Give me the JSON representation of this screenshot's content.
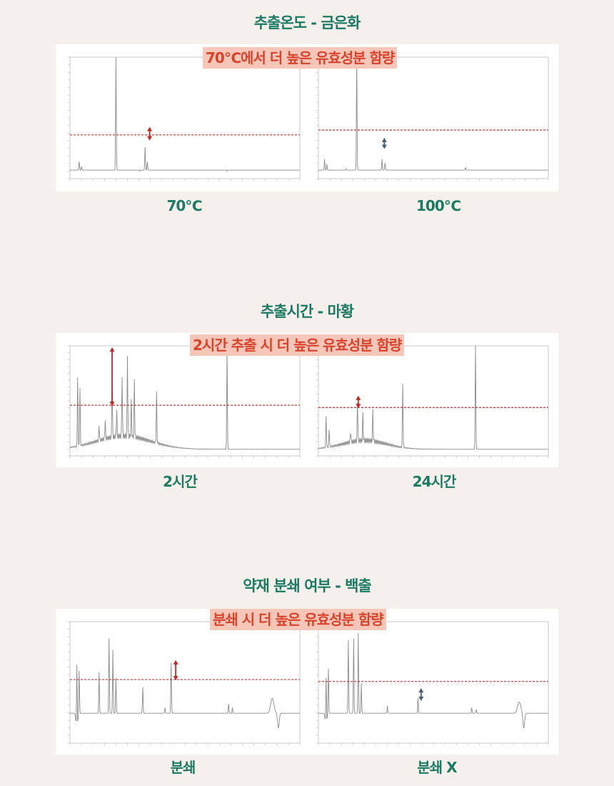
{
  "sections": [
    {
      "title": "추출온도 - 금은화",
      "banner": "70℃에서 더 높은 유효성분 함량",
      "captions": [
        "70℃",
        "100℃"
      ]
    },
    {
      "title": "추출시간 - 마황",
      "banner": "2시간 추출 시 더 높은 유효성분 함량",
      "captions": [
        "2시간",
        "24시간"
      ]
    },
    {
      "title": "약재 분쇄 여부 - 백출",
      "banner": "분쇄 시 더 높은 유효성분 함량",
      "captions": [
        "분쇄",
        "분쇄 X"
      ]
    }
  ],
  "colors": {
    "title": "#1a7a62",
    "banner_bg": "#f6c7b8",
    "banner_text": "#d9432c",
    "trace": "#8a8a8a",
    "threshold": "#d03030",
    "arrow_up": "#c02828",
    "arrow_down": "#4a5a78"
  },
  "chart_data": [
    {
      "type": "line",
      "name": "70℃",
      "xlim": [
        0,
        30
      ],
      "ylim": [
        0,
        100
      ],
      "baseline": 7,
      "threshold": 36,
      "peaks": [
        [
          1.2,
          14
        ],
        [
          1.5,
          10
        ],
        [
          6.0,
          100
        ],
        [
          9.8,
          26
        ],
        [
          10.1,
          14
        ],
        [
          9.1,
          6
        ],
        [
          20.5,
          6
        ]
      ],
      "marker": {
        "x": 10.4,
        "y_from": 32,
        "y_to": 42,
        "color": "arrow_up"
      }
    },
    {
      "type": "line",
      "name": "100℃",
      "xlim": [
        0,
        30
      ],
      "ylim": [
        0,
        100
      ],
      "baseline": 7,
      "threshold": 40,
      "peaks": [
        [
          0.8,
          16
        ],
        [
          1.1,
          12
        ],
        [
          5.0,
          98
        ],
        [
          3.6,
          8
        ],
        [
          8.3,
          16
        ],
        [
          8.7,
          13
        ],
        [
          19.2,
          9
        ]
      ],
      "marker": {
        "x": 8.6,
        "y_from": 25,
        "y_to": 33,
        "color": "arrow_down"
      }
    },
    {
      "type": "line",
      "name": "2시간",
      "xlim": [
        0,
        30
      ],
      "ylim": [
        0,
        100
      ],
      "baseline": 6,
      "threshold": 46,
      "hump": {
        "center": 7,
        "width": 5,
        "height": 12
      },
      "peaks": [
        [
          1.0,
          68
        ],
        [
          1.3,
          58
        ],
        [
          5.5,
          56
        ],
        [
          6.8,
          62
        ],
        [
          7.5,
          80
        ],
        [
          8.4,
          58
        ],
        [
          8.0,
          38
        ],
        [
          6.1,
          30
        ],
        [
          3.8,
          20
        ],
        [
          4.6,
          24
        ],
        [
          11.3,
          52
        ],
        [
          20.5,
          97
        ]
      ],
      "marker": {
        "x": 5.5,
        "y_from": 46,
        "y_to": 98,
        "color": "arrow_up"
      }
    },
    {
      "type": "line",
      "name": "24시간",
      "xlim": [
        0,
        30
      ],
      "ylim": [
        0,
        100
      ],
      "baseline": 6,
      "threshold": 44,
      "hump": {
        "center": 6,
        "width": 4,
        "height": 8
      },
      "peaks": [
        [
          1.0,
          34
        ],
        [
          1.4,
          22
        ],
        [
          5.1,
          42
        ],
        [
          5.8,
          30
        ],
        [
          7.1,
          34
        ],
        [
          4.2,
          16
        ],
        [
          11.0,
          64
        ],
        [
          20.5,
          100
        ]
      ],
      "marker": {
        "x": 5.2,
        "y_from": 44,
        "y_to": 54,
        "color": "arrow_up"
      }
    },
    {
      "type": "line",
      "name": "분쇄",
      "xlim": [
        0,
        30
      ],
      "ylim": [
        -30,
        100
      ],
      "baseline": 2,
      "threshold": 38,
      "peaks": [
        [
          0.9,
          74
        ],
        [
          1.2,
          48
        ],
        [
          3.8,
          46
        ],
        [
          5.1,
          82
        ],
        [
          5.6,
          70
        ],
        [
          6.0,
          40
        ],
        [
          9.5,
          30
        ],
        [
          13.2,
          56
        ],
        [
          12.4,
          8
        ],
        [
          20.7,
          12
        ],
        [
          21.2,
          8
        ]
      ],
      "dips": [
        [
          0.9,
          -18
        ],
        [
          27.2,
          -14
        ]
      ],
      "bumps": [
        [
          26.4,
          18
        ]
      ],
      "marker": {
        "x": 13.8,
        "y_from": 38,
        "y_to": 58,
        "color": "arrow_up"
      }
    },
    {
      "type": "line",
      "name": "분쇄 X",
      "xlim": [
        0,
        30
      ],
      "ylim": [
        -30,
        100
      ],
      "baseline": 2,
      "threshold": 36,
      "peaks": [
        [
          1.0,
          54
        ],
        [
          1.3,
          50
        ],
        [
          3.9,
          80
        ],
        [
          4.6,
          82
        ],
        [
          5.2,
          88
        ],
        [
          5.6,
          34
        ],
        [
          9.0,
          10
        ],
        [
          13.0,
          18
        ],
        [
          20.0,
          8
        ],
        [
          20.6,
          6
        ]
      ],
      "dips": [
        [
          1.0,
          -12
        ],
        [
          26.8,
          -14
        ]
      ],
      "bumps": [
        [
          26.2,
          14
        ]
      ],
      "marker": {
        "x": 13.4,
        "y_from": 16,
        "y_to": 28,
        "color": "arrow_down"
      }
    }
  ]
}
